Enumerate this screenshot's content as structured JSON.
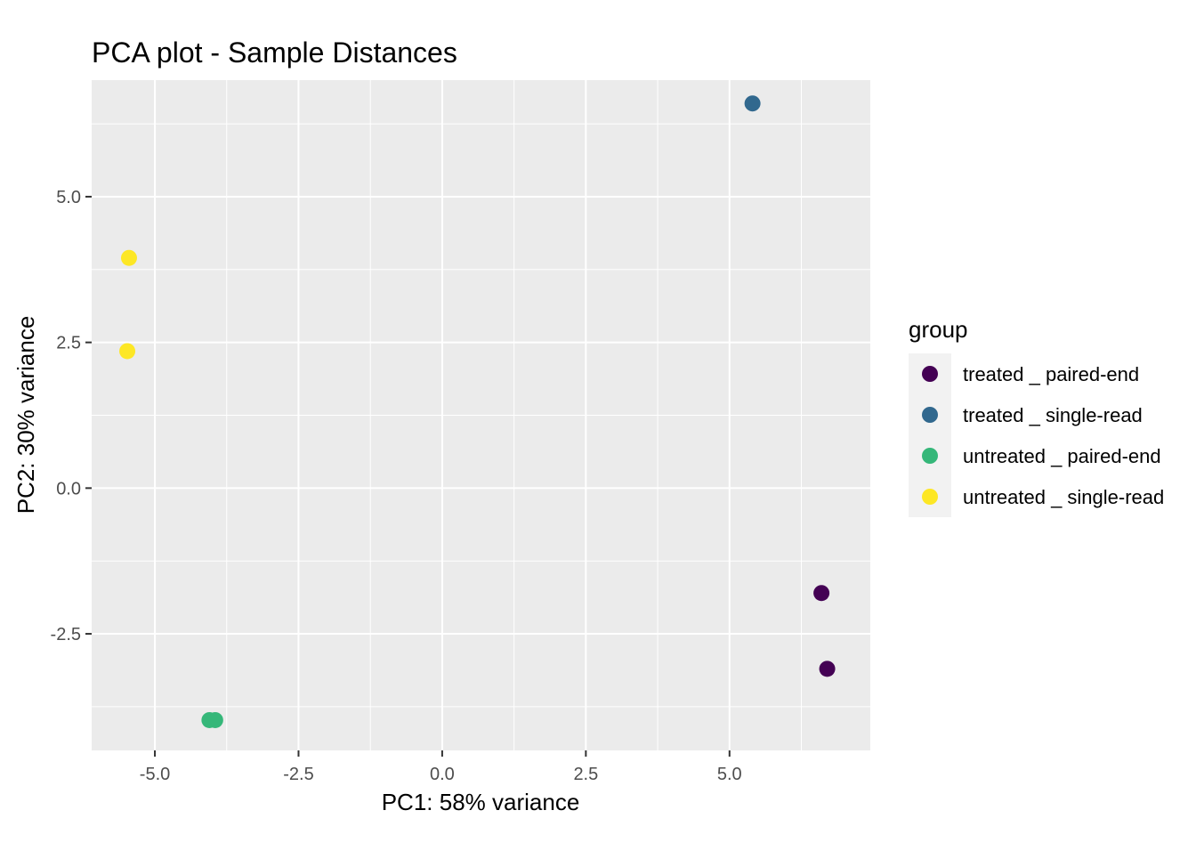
{
  "chart_data": {
    "type": "scatter",
    "title": "PCA plot - Sample Distances",
    "xlabel": "PC1: 58% variance",
    "ylabel": "PC2: 30% variance",
    "xlim": [
      -6.1,
      7.45
    ],
    "ylim": [
      -4.5,
      7.0
    ],
    "x_ticks": [
      -5.0,
      -2.5,
      0.0,
      2.5,
      5.0
    ],
    "x_tick_labels": [
      "-5.0",
      "-2.5",
      "0.0",
      "2.5",
      "5.0"
    ],
    "y_ticks": [
      -2.5,
      0.0,
      2.5,
      5.0
    ],
    "y_tick_labels": [
      "-2.5",
      "0.0",
      "2.5",
      "5.0"
    ],
    "grid": true,
    "legend": {
      "title": "group",
      "placement": "right"
    },
    "series": [
      {
        "name": "treated _ paired-end",
        "color": "#440154",
        "points": [
          {
            "x": 6.6,
            "y": -1.8
          },
          {
            "x": 6.7,
            "y": -3.1
          }
        ]
      },
      {
        "name": "treated _ single-read",
        "color": "#31688E",
        "points": [
          {
            "x": 5.4,
            "y": 6.6
          }
        ]
      },
      {
        "name": "untreated _ paired-end",
        "color": "#35B779",
        "points": [
          {
            "x": -4.05,
            "y": -3.98
          },
          {
            "x": -3.95,
            "y": -3.98
          }
        ]
      },
      {
        "name": "untreated _ single-read",
        "color": "#FDE725",
        "points": [
          {
            "x": -5.45,
            "y": 3.95
          },
          {
            "x": -5.48,
            "y": 2.35
          }
        ]
      }
    ]
  }
}
